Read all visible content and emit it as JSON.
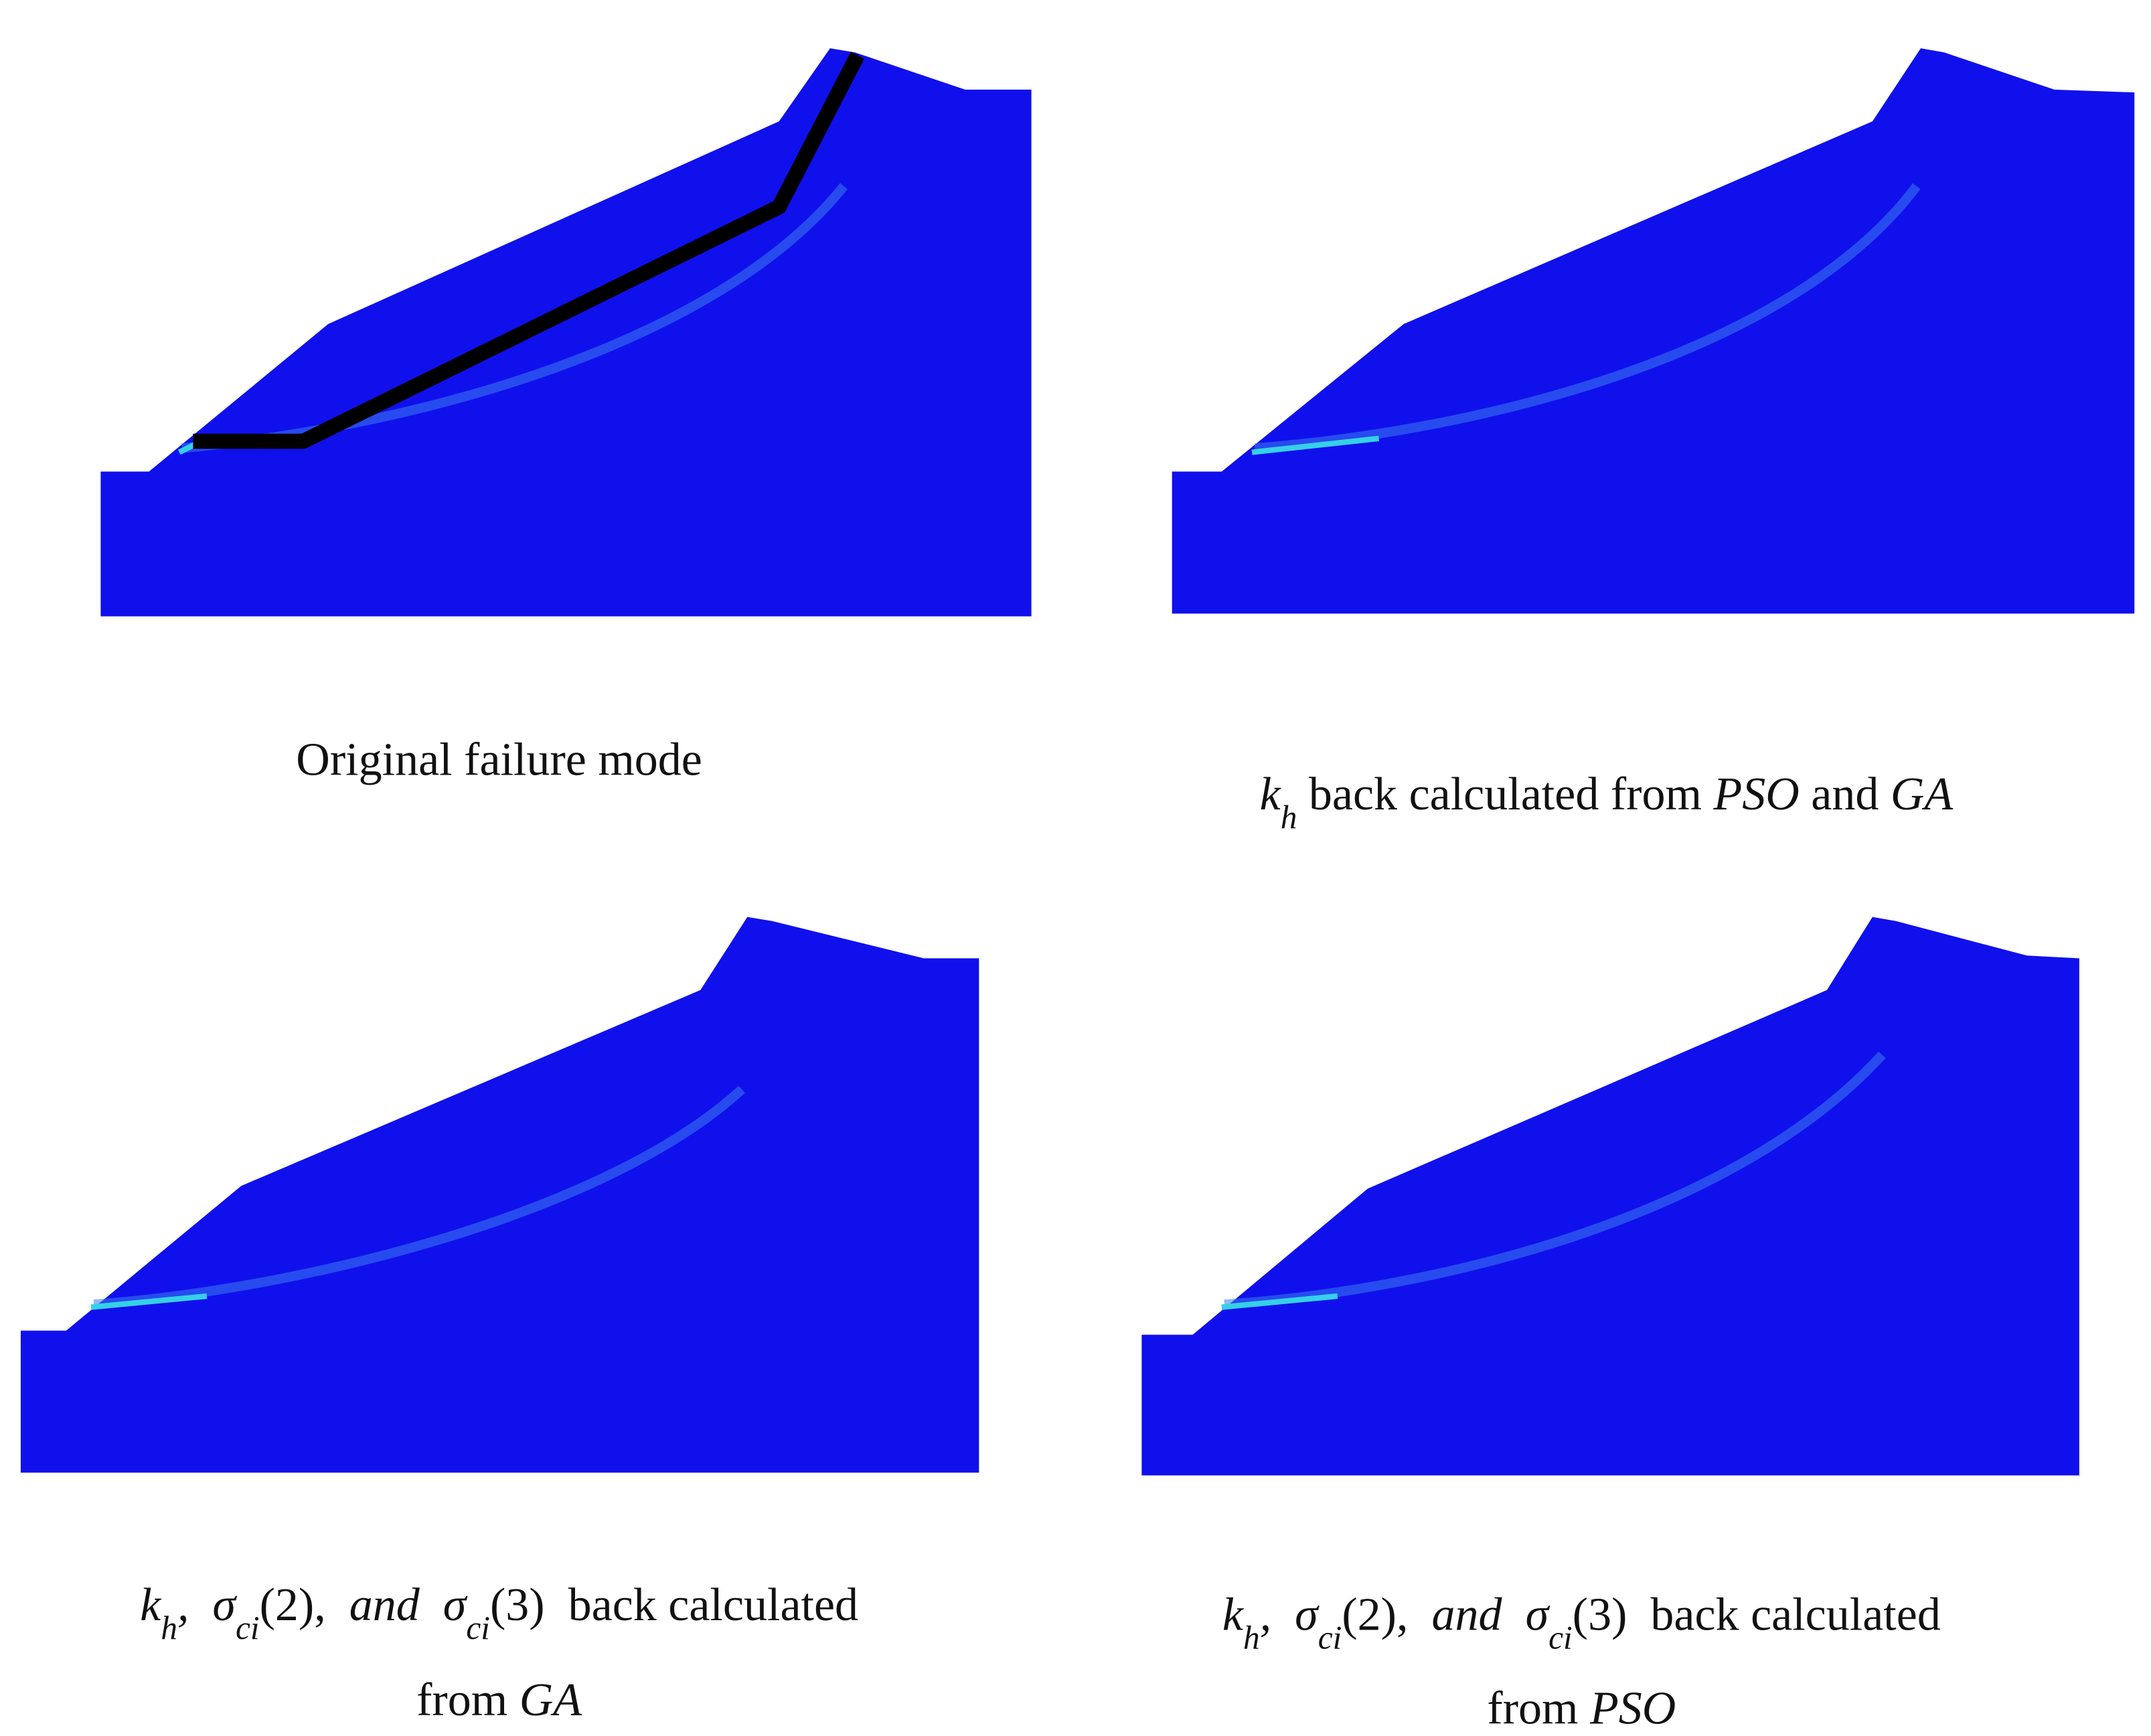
{
  "panels": [
    {
      "lines": [
        [
          "Original failure mode"
        ]
      ]
    },
    {
      "lines": [
        [
          "k",
          "h",
          " back calculated from ",
          "PSO",
          " and ",
          "GA"
        ]
      ]
    },
    {
      "lines": [
        [
          "k",
          "h",
          ",  ",
          "σ",
          "ci",
          "(2),  ",
          "and",
          "  ",
          "σ",
          "ci",
          "(3)",
          "  back calculated"
        ],
        [
          "from ",
          "GA"
        ]
      ]
    },
    {
      "lines": [
        [
          "k",
          "h",
          ",  ",
          "σ",
          "ci",
          "(2),  ",
          "and",
          "  ",
          "σ",
          "ci",
          "(3)",
          "  back calculated"
        ],
        [
          "from ",
          "PSO"
        ]
      ]
    }
  ]
}
